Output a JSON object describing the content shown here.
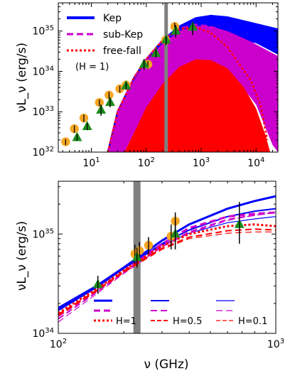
{
  "chart_data": [
    {
      "type": "line",
      "panel": "top",
      "ylabel": "νL_ν (erg/s)",
      "xscale": "log",
      "yscale": "log",
      "xlim": [
        2.5,
        25000
      ],
      "ylim": [
        1e+32,
        5e+35
      ],
      "x_ticks": [
        {
          "value": 10,
          "label": "10",
          "sup": "1"
        },
        {
          "value": 100,
          "label": "10",
          "sup": "2"
        },
        {
          "value": 1000,
          "label": "10",
          "sup": "3"
        },
        {
          "value": 10000,
          "label": "10",
          "sup": "4"
        }
      ],
      "y_ticks": [
        {
          "value": 1e+32,
          "label": "10",
          "sup": "32"
        },
        {
          "value": 1e+33,
          "label": "10",
          "sup": "33"
        },
        {
          "value": 1e+34,
          "label": "10",
          "sup": "34"
        },
        {
          "value": 1e+35,
          "label": "10",
          "sup": "35"
        }
      ],
      "legend": {
        "position": "top-left",
        "entries": [
          {
            "label": "Kep",
            "color": "#0000ff",
            "style": "solid"
          },
          {
            "label": "sub-Kep",
            "color": "#cc00cc",
            "style": "dashed"
          },
          {
            "label": "free-fall",
            "color": "#ff0000",
            "style": "dotted"
          }
        ],
        "note": "(H = 1)"
      },
      "vertical_band": {
        "x": 230,
        "color": "#808080"
      },
      "bands": [
        {
          "name": "Kep",
          "color": "#0000ff",
          "upper": [
            [
              20,
              1e+32
            ],
            [
              30,
              1e+33
            ],
            [
              60,
              7e+33
            ],
            [
              100,
              2e+34
            ],
            [
              200,
              6e+34
            ],
            [
              400,
              1.3e+35
            ],
            [
              800,
              2.1e+35
            ],
            [
              1500,
              2.4e+35
            ],
            [
              3000,
              2.2e+35
            ],
            [
              8000,
              1.6e+35
            ],
            [
              25000,
              1.1e+35
            ]
          ],
          "lower": [
            [
              25000,
              2.6e+34
            ],
            [
              10000,
              5e+34
            ],
            [
              5000,
              6e+34
            ],
            [
              2000,
              7e+34
            ],
            [
              1000,
              6e+34
            ],
            [
              500,
              4e+34
            ],
            [
              200,
              1.5e+34
            ],
            [
              100,
              5e+33
            ],
            [
              50,
              1.5e+33
            ],
            [
              30,
              4e+32
            ],
            [
              20,
              1e+32
            ]
          ]
        },
        {
          "name": "sub-Kep",
          "color": "#cc00cc",
          "upper": [
            [
              20,
              1e+32
            ],
            [
              30,
              1e+33
            ],
            [
              60,
              6e+33
            ],
            [
              100,
              1.8e+34
            ],
            [
              200,
              5e+34
            ],
            [
              400,
              1e+35
            ],
            [
              800,
              1.35e+35
            ],
            [
              1500,
              1.3e+35
            ],
            [
              3000,
              1e+35
            ],
            [
              8000,
              5.5e+34
            ],
            [
              25000,
              2.4e+34
            ]
          ],
          "lower": [
            [
              25000,
              1e+32
            ],
            [
              20000,
              1.5e+32
            ],
            [
              10000,
              1.5e+33
            ],
            [
              5000,
              5e+33
            ],
            [
              2000,
              1.2e+34
            ],
            [
              1000,
              1.3e+34
            ],
            [
              500,
              9e+33
            ],
            [
              200,
              3e+33
            ],
            [
              100,
              1e+33
            ],
            [
              60,
              3e+32
            ],
            [
              40,
              1e+32
            ]
          ]
        },
        {
          "name": "free-fall",
          "color": "#ff0000",
          "upper": [
            [
              40,
              1e+32
            ],
            [
              60,
              3e+32
            ],
            [
              100,
              1.3e+33
            ],
            [
              200,
              5e+33
            ],
            [
              400,
              1.3e+34
            ],
            [
              800,
              2e+34
            ],
            [
              1500,
              1.9e+34
            ],
            [
              3000,
              1.2e+34
            ],
            [
              6000,
              4e+33
            ],
            [
              10000,
              1.2e+33
            ],
            [
              15000,
              2.5e+32
            ],
            [
              18000,
              1e+32
            ]
          ],
          "lower": [
            [
              18000,
              1e+32
            ],
            [
              40,
              1e+32
            ]
          ]
        }
      ],
      "lines": [
        {
          "name": "Kep",
          "color": "#0000ff",
          "style": "solid",
          "points": [
            [
              20,
              1e+32
            ],
            [
              30,
              1e+33
            ],
            [
              60,
              7e+33
            ],
            [
              100,
              2e+34
            ],
            [
              200,
              6e+34
            ],
            [
              400,
              1.3e+35
            ],
            [
              800,
              2.1e+35
            ],
            [
              1500,
              2.4e+35
            ],
            [
              3000,
              2.2e+35
            ],
            [
              8000,
              1.6e+35
            ],
            [
              25000,
              1.1e+35
            ]
          ]
        },
        {
          "name": "sub-Kep",
          "color": "#cc00cc",
          "style": "dashed",
          "points": [
            [
              20,
              1e+32
            ],
            [
              30,
              1e+33
            ],
            [
              60,
              7e+33
            ],
            [
              100,
              2e+34
            ],
            [
              200,
              6e+34
            ],
            [
              400,
              1.15e+35
            ],
            [
              800,
              1.45e+35
            ],
            [
              1500,
              1.3e+35
            ],
            [
              3000,
              9e+34
            ],
            [
              8000,
              4e+34
            ],
            [
              25000,
              1.5e+34
            ]
          ]
        },
        {
          "name": "free-fall",
          "color": "#ff0000",
          "style": "dotted",
          "points": [
            [
              20,
              1e+32
            ],
            [
              30,
              1e+33
            ],
            [
              60,
              7e+33
            ],
            [
              100,
              2e+34
            ],
            [
              200,
              6e+34
            ],
            [
              400,
              1.1e+35
            ],
            [
              800,
              1.25e+35
            ],
            [
              1500,
              9e+34
            ],
            [
              3000,
              4e+34
            ],
            [
              8000,
              6e+33
            ],
            [
              12000,
              1.5e+33
            ],
            [
              16000,
              2e+32
            ]
          ]
        }
      ],
      "circles": {
        "color": "#f5a623",
        "points": [
          [
            3.4,
            1.8e+32
          ],
          [
            4.9,
            3.8e+32
          ],
          [
            7.3,
            7e+32
          ],
          [
            14,
            1.7e+33
          ],
          [
            21,
            2.6e+33
          ],
          [
            33,
            3.7e+33
          ],
          [
            43,
            4.6e+33
          ],
          [
            107,
            1.5e+34
          ],
          [
            225,
            6e+34
          ],
          [
            330,
            1.3e+35
          ]
        ],
        "err_lo": [
          1.5e+32,
          3e+32,
          5.5e+32,
          1.4e+33,
          2.1e+33,
          3e+33,
          3.7e+33,
          1.2e+34,
          4.5e+34,
          1e+35
        ],
        "err_hi": [
          2.1e+32,
          4.6e+32,
          8.5e+32,
          2e+33,
          3.1e+33,
          4.4e+33,
          5.5e+33,
          1.8e+34,
          7.5e+34,
          1.6e+35
        ]
      },
      "triangles": {
        "color": "#1e8c1e",
        "points": [
          [
            5.5,
            2.3e+32
          ],
          [
            8.4,
            4.3e+32
          ],
          [
            15,
            1.1e+33
          ],
          [
            22,
            1.7e+33
          ],
          [
            43,
            4.4e+33
          ],
          [
            91,
            1.5e+34
          ],
          [
            150,
            2.8e+34
          ],
          [
            230,
            6e+34
          ],
          [
            345,
            1e+35
          ],
          [
            700,
            1.25e+35
          ]
        ],
        "err_lo": [
          1.9e+32,
          3.5e+32,
          8e+32,
          1.3e+33,
          3.5e+33,
          1.1e+34,
          2.2e+34,
          4.7e+34,
          7e+34,
          8e+34
        ],
        "err_hi": [
          2.8e+32,
          5.3e+32,
          1.5e+33,
          2.2e+33,
          5.4e+33,
          2e+34,
          3.5e+34,
          7.5e+34,
          1.4e+35,
          1.6e+35
        ]
      }
    },
    {
      "type": "line",
      "panel": "bottom",
      "xlabel": "ν (GHz)",
      "ylabel": "νL_ν (erg/s)",
      "xscale": "log",
      "yscale": "log",
      "xlim": [
        100,
        1000
      ],
      "ylim": [
        1e+34,
        3.4e+35
      ],
      "x_ticks": [
        {
          "value": 100,
          "label": "10",
          "sup": "2"
        },
        {
          "value": 1000,
          "label": "10",
          "sup": "3"
        }
      ],
      "y_ticks": [
        {
          "value": 1e+34,
          "label": "10",
          "sup": "34"
        },
        {
          "value": 1e+35,
          "label": "10",
          "sup": "35"
        }
      ],
      "vertical_band": {
        "x": 230,
        "color": "#808080"
      },
      "legend": {
        "position": "bottom",
        "columns": [
          {
            "label": "H=1",
            "width": "thick"
          },
          {
            "label": "H=0.5",
            "width": "medium"
          },
          {
            "label": "H=0.1",
            "width": "thin"
          }
        ],
        "row_colors": [
          "#0000ff",
          "#cc00cc",
          "#ff0000"
        ],
        "row_styles": [
          "solid",
          "dashed",
          "dotted"
        ]
      },
      "series": [
        {
          "color": "#0000ff",
          "style": "solid",
          "width": 3,
          "points": [
            [
              100,
              1.8e+34
            ],
            [
              150,
              3e+34
            ],
            [
              200,
              4.6e+34
            ],
            [
              300,
              8.6e+34
            ],
            [
              400,
              1.25e+35
            ],
            [
              600,
              1.8e+35
            ],
            [
              800,
              2.15e+35
            ],
            [
              1000,
              2.4e+35
            ]
          ]
        },
        {
          "color": "#0000ff",
          "style": "solid",
          "width": 2,
          "points": [
            [
              100,
              1.7e+34
            ],
            [
              150,
              2.9e+34
            ],
            [
              200,
              4.5e+34
            ],
            [
              300,
              8e+34
            ],
            [
              400,
              1.1e+35
            ],
            [
              600,
              1.5e+35
            ],
            [
              800,
              1.7e+35
            ],
            [
              1000,
              1.8e+35
            ]
          ]
        },
        {
          "color": "#0000ff",
          "style": "solid",
          "width": 1.2,
          "points": [
            [
              100,
              1.75e+34
            ],
            [
              150,
              2.9e+34
            ],
            [
              200,
              4.5e+34
            ],
            [
              300,
              7.8e+34
            ],
            [
              400,
              1.02e+35
            ],
            [
              600,
              1.3e+35
            ],
            [
              800,
              1.42e+35
            ],
            [
              1000,
              1.5e+35
            ]
          ]
        },
        {
          "color": "#cc00cc",
          "style": "dashed",
          "width": 3,
          "points": [
            [
              100,
              1.5e+34
            ],
            [
              150,
              2.7e+34
            ],
            [
              200,
              4.2e+34
            ],
            [
              300,
              8e+34
            ],
            [
              400,
              1.15e+35
            ],
            [
              600,
              1.5e+35
            ],
            [
              800,
              1.6e+35
            ],
            [
              1000,
              1.65e+35
            ]
          ]
        },
        {
          "color": "#cc00cc",
          "style": "dashed",
          "width": 2,
          "points": [
            [
              100,
              1.4e+34
            ],
            [
              150,
              2.6e+34
            ],
            [
              200,
              4.1e+34
            ],
            [
              300,
              7.6e+34
            ],
            [
              400,
              1.05e+35
            ],
            [
              600,
              1.4e+35
            ],
            [
              800,
              1.55e+35
            ],
            [
              1000,
              1.65e+35
            ]
          ]
        },
        {
          "color": "#cc00cc",
          "style": "dashed",
          "width": 1.2,
          "points": [
            [
              100,
              1.3e+34
            ],
            [
              150,
              2.5e+34
            ],
            [
              200,
              4e+34
            ],
            [
              300,
              7.4e+34
            ],
            [
              400,
              1.02e+35
            ],
            [
              600,
              1.37e+35
            ],
            [
              800,
              1.55e+35
            ],
            [
              1000,
              1.65e+35
            ]
          ]
        },
        {
          "color": "#ff0000",
          "style": "dotted",
          "width": 3,
          "points": [
            [
              100,
              1.6e+34
            ],
            [
              150,
              2.8e+34
            ],
            [
              200,
              4.3e+34
            ],
            [
              300,
              7.6e+34
            ],
            [
              400,
              1e+35
            ],
            [
              600,
              1.2e+35
            ],
            [
              800,
              1.25e+35
            ],
            [
              1000,
              1.2e+35
            ]
          ]
        },
        {
          "color": "#ff0000",
          "style": "dashed",
          "width": 2,
          "points": [
            [
              100,
              1.55e+34
            ],
            [
              150,
              2.7e+34
            ],
            [
              200,
              4.2e+34
            ],
            [
              300,
              7.2e+34
            ],
            [
              400,
              9.3e+34
            ],
            [
              600,
              1.08e+35
            ],
            [
              800,
              1.12e+35
            ],
            [
              1000,
              1.1e+35
            ]
          ]
        },
        {
          "color": "#ff0000",
          "style": "dashed",
          "width": 1.2,
          "points": [
            [
              100,
              1.5e+34
            ],
            [
              150,
              2.65e+34
            ],
            [
              200,
              4.1e+34
            ],
            [
              300,
              7e+34
            ],
            [
              400,
              9e+34
            ],
            [
              600,
              1.02e+35
            ],
            [
              800,
              1.05e+35
            ],
            [
              1000,
              1.05e+35
            ]
          ]
        }
      ],
      "circles": {
        "color": "#f5a623",
        "points": [
          [
            225,
            6.3e+34
          ],
          [
            236,
            6.8e+34
          ],
          [
            260,
            7.7e+34
          ],
          [
            330,
            9.5e+34
          ],
          [
            345,
            1.35e+35
          ]
        ],
        "err_lo": [
          5e+34,
          5.5e+34,
          6.3e+34,
          7e+34,
          1.1e+35
        ],
        "err_hi": [
          7.8e+34,
          8.3e+34,
          9.3e+34,
          1.25e+35,
          1.65e+35
        ]
      },
      "triangles": {
        "color": "#1e8c1e",
        "points": [
          [
            152,
            3.1e+34
          ],
          [
            230,
            5.8e+34
          ],
          [
            345,
            1e+35
          ],
          [
            680,
            1.25e+35
          ]
        ],
        "err_lo": [
          2.5e+34,
          4.6e+34,
          7e+34,
          8e+34
        ],
        "err_hi": [
          3.8e+34,
          7.3e+34,
          1.4e+35,
          2.1e+35
        ]
      }
    }
  ]
}
